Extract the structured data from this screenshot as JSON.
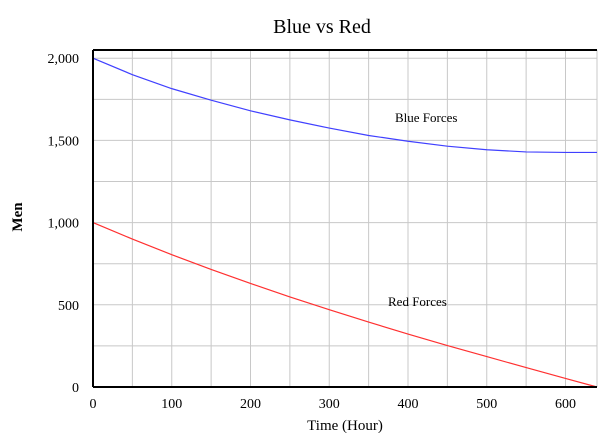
{
  "chart_data": {
    "type": "line",
    "title": "Blue vs Red",
    "xlabel": "Time (Hour)",
    "ylabel": "Men",
    "xlim": [
      0,
      640
    ],
    "ylim": [
      0,
      2050
    ],
    "x_ticks": [
      0,
      100,
      200,
      300,
      400,
      500,
      600
    ],
    "x_tick_labels": [
      "0",
      "100",
      "200",
      "300",
      "400",
      "500",
      "600"
    ],
    "y_ticks": [
      0,
      500,
      1000,
      1500,
      2000
    ],
    "y_tick_labels": [
      "0",
      "500",
      "1,000",
      "1,500",
      "2,000"
    ],
    "x_gridlines": [
      0,
      50,
      100,
      150,
      200,
      250,
      300,
      350,
      400,
      450,
      500,
      550,
      600,
      640
    ],
    "y_gridlines": [
      0,
      250,
      500,
      750,
      1000,
      1250,
      1500,
      1750,
      2000
    ],
    "grid": true,
    "series": [
      {
        "name": "Blue Forces",
        "color": "#4040ff",
        "x": [
          0,
          50,
          100,
          150,
          200,
          250,
          300,
          350,
          400,
          450,
          500,
          550,
          600,
          640
        ],
        "values": [
          2000,
          1900,
          1815,
          1745,
          1680,
          1625,
          1575,
          1530,
          1495,
          1465,
          1443,
          1430,
          1427,
          1427
        ]
      },
      {
        "name": "Red Forces",
        "color": "#ff3030",
        "x": [
          0,
          50,
          100,
          150,
          200,
          250,
          300,
          350,
          400,
          450,
          500,
          550,
          600,
          640
        ],
        "values": [
          1000,
          900,
          805,
          715,
          630,
          548,
          470,
          395,
          322,
          252,
          185,
          118,
          52,
          0
        ]
      }
    ]
  }
}
